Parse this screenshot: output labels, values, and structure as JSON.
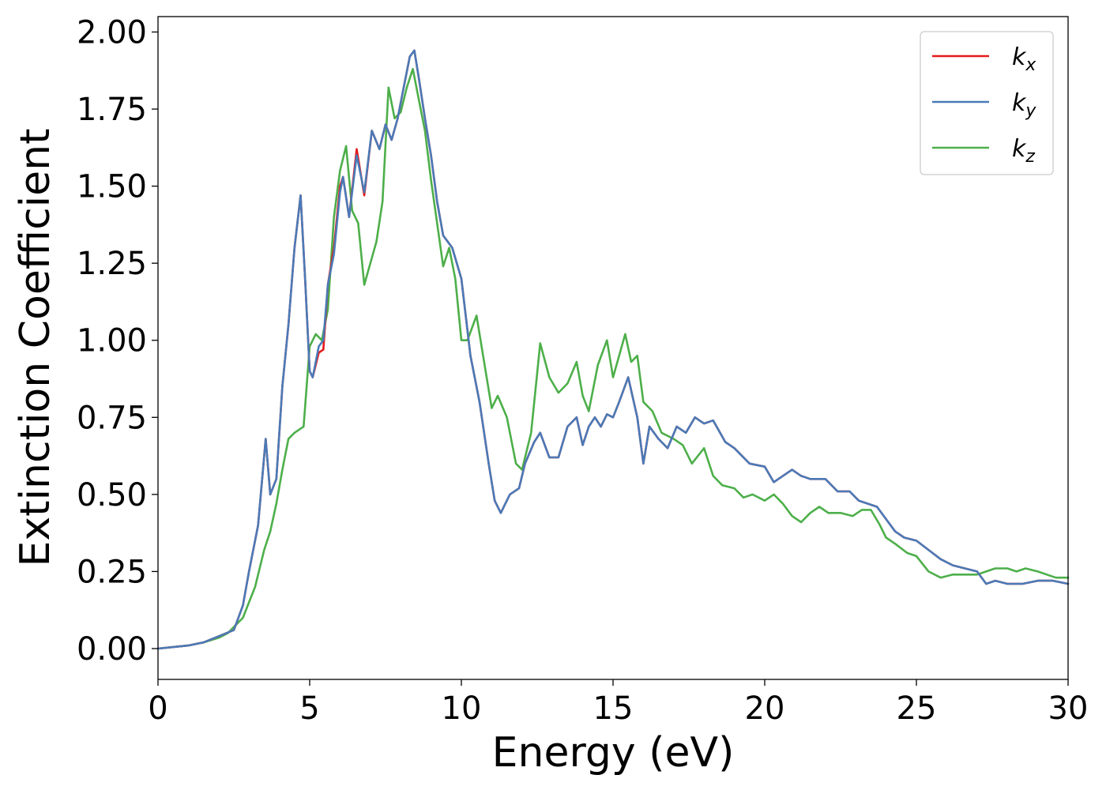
{
  "chart_data": {
    "type": "line",
    "xlabel": "Energy (eV)",
    "ylabel": "Extinction Coefficient",
    "xlim": [
      0,
      30
    ],
    "ylim": [
      -0.1,
      2.05
    ],
    "xticks": [
      0,
      5,
      10,
      15,
      20,
      25,
      30
    ],
    "xtick_labels": [
      "0",
      "5",
      "10",
      "15",
      "20",
      "25",
      "30"
    ],
    "yticks": [
      0,
      0.25,
      0.5,
      0.75,
      1.0,
      1.25,
      1.5,
      1.75,
      2.0
    ],
    "ytick_labels": [
      "0.00",
      "0.25",
      "0.50",
      "0.75",
      "1.00",
      "1.25",
      "1.50",
      "1.75",
      "2.00"
    ],
    "grid": false,
    "legend_position": "top-right",
    "series": [
      {
        "name": "k",
        "subscript": "x",
        "color": "#e41a1c",
        "x": [
          0,
          1,
          1.5,
          2,
          2.5,
          2.8,
          3,
          3.3,
          3.55,
          3.7,
          3.9,
          4.1,
          4.3,
          4.5,
          4.7,
          4.85,
          5.0,
          5.1,
          5.3,
          5.45,
          5.6,
          5.8,
          6.0,
          6.1,
          6.3,
          6.55,
          6.8,
          7.05,
          7.3,
          7.5,
          7.7,
          7.9,
          8.1,
          8.3,
          8.45,
          8.6,
          8.8,
          9.0,
          9.2,
          9.4,
          9.7,
          10.0,
          10.3,
          10.6,
          10.9,
          11.1,
          11.3,
          11.6,
          11.9,
          12.1,
          12.4,
          12.6,
          12.9,
          13.2,
          13.5,
          13.8,
          14.0,
          14.2,
          14.4,
          14.6,
          14.8,
          15.0,
          15.2,
          15.5,
          15.8,
          16.0,
          16.2,
          16.5,
          16.8,
          17.1,
          17.4,
          17.7,
          18.0,
          18.3,
          18.7,
          19.0,
          19.5,
          20.0,
          20.3,
          20.6,
          20.9,
          21.2,
          21.5,
          22.0,
          22.4,
          22.8,
          23.1,
          23.4,
          23.7,
          24.0,
          24.3,
          24.6,
          25.0,
          25.4,
          25.8,
          26.2,
          26.6,
          27.0,
          27.3,
          27.6,
          28.0,
          28.5,
          29.0,
          29.5,
          30.0
        ],
        "y": [
          0,
          0.01,
          0.02,
          0.04,
          0.06,
          0.14,
          0.25,
          0.4,
          0.68,
          0.5,
          0.55,
          0.85,
          1.05,
          1.3,
          1.47,
          1.2,
          0.9,
          0.88,
          0.96,
          0.97,
          1.18,
          1.3,
          1.5,
          1.53,
          1.4,
          1.62,
          1.47,
          1.68,
          1.62,
          1.7,
          1.65,
          1.72,
          1.82,
          1.92,
          1.94,
          1.85,
          1.72,
          1.6,
          1.45,
          1.34,
          1.3,
          1.2,
          0.95,
          0.8,
          0.6,
          0.48,
          0.44,
          0.5,
          0.52,
          0.6,
          0.67,
          0.7,
          0.62,
          0.62,
          0.72,
          0.75,
          0.66,
          0.72,
          0.75,
          0.72,
          0.76,
          0.75,
          0.8,
          0.88,
          0.75,
          0.6,
          0.72,
          0.68,
          0.65,
          0.72,
          0.7,
          0.75,
          0.73,
          0.74,
          0.67,
          0.65,
          0.6,
          0.59,
          0.54,
          0.56,
          0.58,
          0.56,
          0.55,
          0.55,
          0.51,
          0.51,
          0.48,
          0.47,
          0.46,
          0.42,
          0.38,
          0.36,
          0.35,
          0.32,
          0.29,
          0.27,
          0.26,
          0.25,
          0.21,
          0.22,
          0.21,
          0.21,
          0.22,
          0.22,
          0.21
        ]
      },
      {
        "name": "k",
        "subscript": "y",
        "color": "#4a7ab7",
        "x": [
          0,
          1,
          1.5,
          2,
          2.5,
          2.8,
          3,
          3.3,
          3.55,
          3.7,
          3.9,
          4.1,
          4.3,
          4.5,
          4.7,
          4.85,
          5.0,
          5.1,
          5.3,
          5.45,
          5.6,
          5.8,
          6.0,
          6.1,
          6.3,
          6.55,
          6.8,
          7.05,
          7.3,
          7.5,
          7.7,
          7.9,
          8.1,
          8.3,
          8.45,
          8.6,
          8.8,
          9.0,
          9.2,
          9.4,
          9.7,
          10.0,
          10.3,
          10.6,
          10.9,
          11.1,
          11.3,
          11.6,
          11.9,
          12.1,
          12.4,
          12.6,
          12.9,
          13.2,
          13.5,
          13.8,
          14.0,
          14.2,
          14.4,
          14.6,
          14.8,
          15.0,
          15.2,
          15.5,
          15.8,
          16.0,
          16.2,
          16.5,
          16.8,
          17.1,
          17.4,
          17.7,
          18.0,
          18.3,
          18.7,
          19.0,
          19.5,
          20.0,
          20.3,
          20.6,
          20.9,
          21.2,
          21.5,
          22.0,
          22.4,
          22.8,
          23.1,
          23.4,
          23.7,
          24.0,
          24.3,
          24.6,
          25.0,
          25.4,
          25.8,
          26.2,
          26.6,
          27.0,
          27.3,
          27.6,
          28.0,
          28.5,
          29.0,
          29.5,
          30.0
        ],
        "y": [
          0,
          0.01,
          0.02,
          0.04,
          0.06,
          0.14,
          0.25,
          0.4,
          0.68,
          0.5,
          0.55,
          0.85,
          1.05,
          1.3,
          1.47,
          1.2,
          0.9,
          0.88,
          0.98,
          1.0,
          1.18,
          1.28,
          1.48,
          1.53,
          1.4,
          1.6,
          1.48,
          1.68,
          1.62,
          1.7,
          1.65,
          1.72,
          1.82,
          1.92,
          1.94,
          1.85,
          1.72,
          1.6,
          1.45,
          1.34,
          1.3,
          1.2,
          0.95,
          0.8,
          0.6,
          0.48,
          0.44,
          0.5,
          0.52,
          0.6,
          0.67,
          0.7,
          0.62,
          0.62,
          0.72,
          0.75,
          0.66,
          0.72,
          0.75,
          0.72,
          0.76,
          0.75,
          0.8,
          0.88,
          0.75,
          0.6,
          0.72,
          0.68,
          0.65,
          0.72,
          0.7,
          0.75,
          0.73,
          0.74,
          0.67,
          0.65,
          0.6,
          0.59,
          0.54,
          0.56,
          0.58,
          0.56,
          0.55,
          0.55,
          0.51,
          0.51,
          0.48,
          0.47,
          0.46,
          0.42,
          0.38,
          0.36,
          0.35,
          0.32,
          0.29,
          0.27,
          0.26,
          0.25,
          0.21,
          0.22,
          0.21,
          0.21,
          0.22,
          0.22,
          0.21
        ]
      },
      {
        "name": "k",
        "subscript": "z",
        "color": "#4daf4a",
        "x": [
          0,
          1,
          1.5,
          2,
          2.3,
          2.6,
          2.8,
          3.0,
          3.2,
          3.5,
          3.7,
          3.9,
          4.1,
          4.3,
          4.5,
          4.8,
          5.0,
          5.2,
          5.4,
          5.6,
          5.8,
          6.0,
          6.2,
          6.4,
          6.6,
          6.8,
          7.0,
          7.2,
          7.4,
          7.6,
          7.8,
          8.0,
          8.2,
          8.4,
          8.6,
          8.8,
          9.0,
          9.2,
          9.4,
          9.6,
          9.8,
          10.0,
          10.2,
          10.5,
          10.8,
          11.0,
          11.2,
          11.5,
          11.8,
          12.0,
          12.3,
          12.6,
          12.9,
          13.2,
          13.5,
          13.8,
          14.0,
          14.2,
          14.5,
          14.8,
          15.0,
          15.2,
          15.4,
          15.6,
          15.8,
          16.0,
          16.3,
          16.6,
          17.0,
          17.3,
          17.6,
          18.0,
          18.3,
          18.6,
          19.0,
          19.3,
          19.6,
          20.0,
          20.3,
          20.6,
          20.9,
          21.2,
          21.5,
          21.8,
          22.1,
          22.5,
          22.9,
          23.2,
          23.5,
          23.8,
          24.0,
          24.3,
          24.7,
          25.0,
          25.4,
          25.8,
          26.2,
          26.6,
          27.0,
          27.3,
          27.6,
          28.0,
          28.3,
          28.6,
          29.0,
          29.3,
          29.6,
          30.0
        ],
        "y": [
          0,
          0.01,
          0.02,
          0.035,
          0.05,
          0.08,
          0.1,
          0.15,
          0.2,
          0.32,
          0.38,
          0.47,
          0.58,
          0.68,
          0.7,
          0.72,
          0.98,
          1.02,
          1.0,
          1.1,
          1.4,
          1.55,
          1.63,
          1.42,
          1.38,
          1.18,
          1.25,
          1.32,
          1.45,
          1.82,
          1.72,
          1.74,
          1.82,
          1.88,
          1.78,
          1.68,
          1.52,
          1.38,
          1.24,
          1.3,
          1.2,
          1.0,
          1.0,
          1.08,
          0.9,
          0.78,
          0.82,
          0.75,
          0.6,
          0.58,
          0.7,
          0.99,
          0.88,
          0.83,
          0.86,
          0.93,
          0.82,
          0.77,
          0.92,
          1.0,
          0.88,
          0.95,
          1.02,
          0.93,
          0.95,
          0.8,
          0.77,
          0.7,
          0.68,
          0.66,
          0.6,
          0.65,
          0.56,
          0.53,
          0.52,
          0.49,
          0.5,
          0.48,
          0.5,
          0.47,
          0.43,
          0.41,
          0.44,
          0.46,
          0.44,
          0.44,
          0.43,
          0.45,
          0.45,
          0.4,
          0.36,
          0.34,
          0.31,
          0.3,
          0.25,
          0.23,
          0.24,
          0.24,
          0.24,
          0.25,
          0.26,
          0.26,
          0.25,
          0.26,
          0.25,
          0.24,
          0.23,
          0.23
        ]
      }
    ]
  }
}
